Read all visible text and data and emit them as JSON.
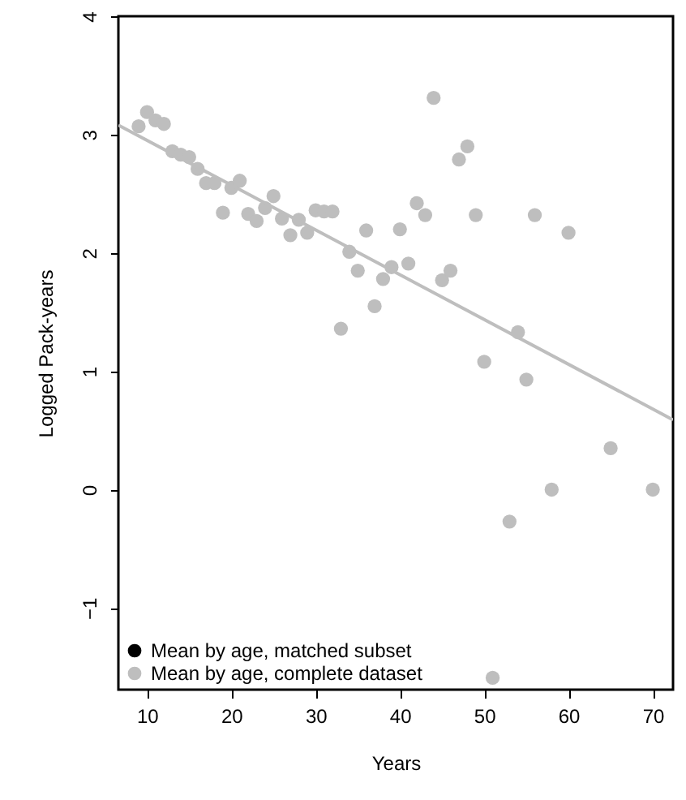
{
  "chart_data": {
    "type": "scatter",
    "xlabel": "Years",
    "ylabel": "Logged Pack-years",
    "xlim": [
      6.6,
      72.4
    ],
    "ylim": [
      -1.69,
      4
    ],
    "xticks": [
      10,
      20,
      30,
      40,
      50,
      60,
      70
    ],
    "yticks": [
      {
        "value": -1,
        "label": "−1"
      },
      0,
      1,
      2,
      3,
      4
    ],
    "grid": false,
    "legend": "bottom left",
    "series": [
      {
        "name": "Mean by age, matched subset",
        "color": "#000000",
        "marker": "circle"
      },
      {
        "name": "Mean by age, complete dataset",
        "color": "#bebebe",
        "marker": "circle",
        "x": [
          9,
          10,
          11,
          12,
          13,
          14,
          15,
          16,
          17,
          18,
          19,
          20,
          21,
          22,
          23,
          24,
          25,
          26,
          27,
          28,
          29,
          30,
          31,
          32,
          33,
          34,
          35,
          36,
          37,
          38,
          39,
          40,
          41,
          42,
          43,
          44,
          45,
          46,
          47,
          48,
          49,
          50,
          51,
          53,
          54,
          55,
          56,
          58,
          60,
          65,
          70
        ],
        "values": [
          3.07,
          3.19,
          3.12,
          3.09,
          2.86,
          2.83,
          2.81,
          2.71,
          2.59,
          2.59,
          2.34,
          2.55,
          2.61,
          2.33,
          2.27,
          2.38,
          2.48,
          2.29,
          2.15,
          2.28,
          2.17,
          2.36,
          2.35,
          2.35,
          1.36,
          2.01,
          1.85,
          2.19,
          1.55,
          1.78,
          1.88,
          2.2,
          1.91,
          2.42,
          2.32,
          3.31,
          1.77,
          1.85,
          2.79,
          2.9,
          2.32,
          1.08,
          -1.59,
          -0.27,
          1.33,
          0.93,
          2.32,
          0.0,
          2.17,
          0.35,
          0.0
        ]
      },
      {
        "type": "line",
        "color": "#bebebe",
        "x": [
          6.6,
          72.4
        ],
        "values": [
          3.08,
          0.59
        ]
      }
    ]
  }
}
